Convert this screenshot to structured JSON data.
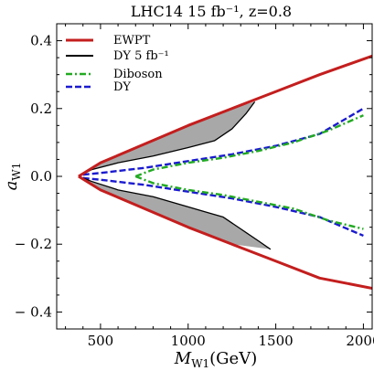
{
  "chart_data": {
    "type": "area",
    "title": "LHC14 15 fb⁻¹, z=0.8",
    "xlabel": "M",
    "xlabel_sub": "W1",
    "xlabel_unit": "(GeV)",
    "ylabel": "a",
    "ylabel_sub": "W1",
    "xlim": [
      250,
      2050
    ],
    "ylim": [
      -0.45,
      0.45
    ],
    "xticks": [
      500,
      1000,
      1500,
      2000
    ],
    "xtick_labels": [
      "500",
      "1000",
      "1500",
      "2000"
    ],
    "yticks": [
      -0.4,
      -0.2,
      0.0,
      0.2,
      0.4
    ],
    "ytick_labels": [
      "− 0.4",
      "− 0.2",
      "0.0",
      "0.2",
      "0.4"
    ],
    "grid": false,
    "legend_position": "top-left",
    "series": [
      {
        "name": "EWPT",
        "color": "#c41e1e",
        "style": "solid",
        "branches": [
          [
            [
              375,
              0.0
            ],
            [
              500,
              0.04
            ],
            [
              750,
              0.095
            ],
            [
              1000,
              0.15
            ],
            [
              1250,
              0.2
            ],
            [
              1500,
              0.25
            ],
            [
              1750,
              0.3
            ],
            [
              2050,
              0.355
            ]
          ],
          [
            [
              375,
              0.0
            ],
            [
              500,
              -0.04
            ],
            [
              750,
              -0.095
            ],
            [
              1000,
              -0.15
            ],
            [
              1250,
              -0.2
            ],
            [
              1500,
              -0.25
            ],
            [
              1750,
              -0.3
            ],
            [
              2050,
              -0.33
            ]
          ]
        ]
      },
      {
        "name": "DY 5 fb⁻¹",
        "color": "#000000",
        "style": "solid",
        "branches": [
          [
            [
              375,
              0.0
            ],
            [
              450,
              0.02
            ],
            [
              600,
              0.04
            ],
            [
              800,
              0.06
            ],
            [
              1000,
              0.085
            ],
            [
              1150,
              0.105
            ],
            [
              1250,
              0.14
            ],
            [
              1330,
              0.185
            ],
            [
              1380,
              0.22
            ]
          ],
          [
            [
              375,
              0.0
            ],
            [
              450,
              -0.015
            ],
            [
              600,
              -0.04
            ],
            [
              800,
              -0.06
            ],
            [
              1000,
              -0.09
            ],
            [
              1100,
              -0.105
            ],
            [
              1200,
              -0.12
            ],
            [
              1300,
              -0.155
            ],
            [
              1400,
              -0.19
            ],
            [
              1470,
              -0.215
            ]
          ]
        ]
      },
      {
        "name": "Diboson",
        "color": "#22aa22",
        "style": "dashdot",
        "branches": [
          [
            [
              700,
              0.0
            ],
            [
              800,
              0.02
            ],
            [
              1000,
              0.04
            ],
            [
              1200,
              0.055
            ],
            [
              1400,
              0.075
            ],
            [
              1600,
              0.1
            ],
            [
              1800,
              0.135
            ],
            [
              2000,
              0.18
            ]
          ],
          [
            [
              700,
              0.0
            ],
            [
              800,
              -0.02
            ],
            [
              1000,
              -0.04
            ],
            [
              1200,
              -0.055
            ],
            [
              1400,
              -0.075
            ],
            [
              1600,
              -0.095
            ],
            [
              1800,
              -0.13
            ],
            [
              2000,
              -0.155
            ]
          ]
        ]
      },
      {
        "name": "DY",
        "color": "#1a1ad0",
        "style": "dashed",
        "branches": [
          [
            [
              400,
              0.005
            ],
            [
              500,
              0.01
            ],
            [
              750,
              0.025
            ],
            [
              1000,
              0.045
            ],
            [
              1250,
              0.065
            ],
            [
              1500,
              0.09
            ],
            [
              1750,
              0.125
            ],
            [
              2000,
              0.2
            ]
          ],
          [
            [
              400,
              -0.005
            ],
            [
              500,
              -0.01
            ],
            [
              750,
              -0.025
            ],
            [
              1000,
              -0.045
            ],
            [
              1250,
              -0.065
            ],
            [
              1500,
              -0.09
            ],
            [
              1750,
              -0.12
            ],
            [
              2000,
              -0.175
            ]
          ]
        ]
      }
    ],
    "shaded_regions": [
      {
        "color": "#a8a8a8",
        "points": [
          [
            375,
            0.0
          ],
          [
            500,
            0.04
          ],
          [
            750,
            0.095
          ],
          [
            1000,
            0.15
          ],
          [
            1250,
            0.2
          ],
          [
            1380,
            0.22
          ],
          [
            1330,
            0.185
          ],
          [
            1250,
            0.14
          ],
          [
            1150,
            0.105
          ],
          [
            1000,
            0.085
          ],
          [
            800,
            0.06
          ],
          [
            600,
            0.04
          ],
          [
            450,
            0.02
          ]
        ]
      },
      {
        "color": "#a8a8a8",
        "points": [
          [
            375,
            0.0
          ],
          [
            500,
            -0.04
          ],
          [
            750,
            -0.095
          ],
          [
            1000,
            -0.15
          ],
          [
            1250,
            -0.2
          ],
          [
            1470,
            -0.215
          ],
          [
            1400,
            -0.19
          ],
          [
            1300,
            -0.155
          ],
          [
            1200,
            -0.12
          ],
          [
            1100,
            -0.105
          ],
          [
            1000,
            -0.09
          ],
          [
            800,
            -0.06
          ],
          [
            600,
            -0.04
          ],
          [
            450,
            -0.015
          ]
        ]
      }
    ]
  }
}
